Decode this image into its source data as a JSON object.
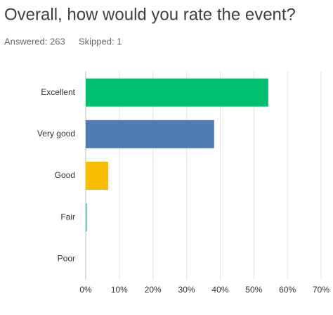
{
  "chart_data": {
    "type": "bar",
    "orientation": "horizontal",
    "title": "Overall, how would you rate the event?",
    "answered": "Answered: 263",
    "skipped": "Skipped: 1",
    "categories": [
      "Excellent",
      "Very good",
      "Good",
      "Fair",
      "Poor"
    ],
    "values": [
      54.3,
      38.2,
      6.7,
      0.4,
      0
    ],
    "colors": [
      "#00bf6f",
      "#507cb6",
      "#f9be00",
      "#6bc8cd",
      "#a8a8a8"
    ],
    "xlim": [
      0,
      70
    ],
    "xticks": [
      {
        "value": 0,
        "label": "0%"
      },
      {
        "value": 10,
        "label": "10%"
      },
      {
        "value": 20,
        "label": "20%"
      },
      {
        "value": 30,
        "label": "30%"
      },
      {
        "value": 40,
        "label": "40%"
      },
      {
        "value": 50,
        "label": "50%"
      },
      {
        "value": 60,
        "label": "60%"
      },
      {
        "value": 70,
        "label": "70%"
      }
    ],
    "grid": true
  }
}
